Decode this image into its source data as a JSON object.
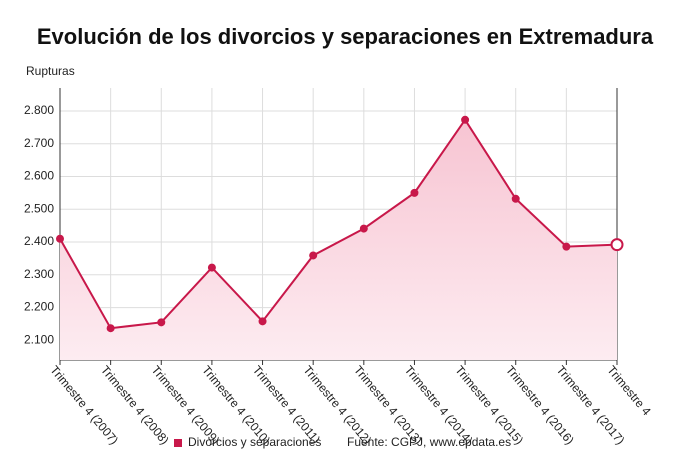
{
  "chart_data": {
    "type": "line",
    "title": "Evolución de los divorcios y separaciones en Extremadura",
    "y_label": "Rupturas",
    "categories": [
      "Trimestre 4 (2007)",
      "Trimestre 4 (2008)",
      "Trimestre 4 (2009)",
      "Trimestre 4 (2010)",
      "Trimestre 4 (2011)",
      "Trimestre 4 (2012)",
      "Trimestre 4 (2013)",
      "Trimestre 4 (2014)",
      "Trimestre 4 (2015)",
      "Trimestre 4 (2016)",
      "Trimestre 4 (2017)",
      "Trimestre 4"
    ],
    "series": [
      {
        "name": "Divorcios y separaciones",
        "color": "#c8184a",
        "values": [
          2410,
          2137,
          2155,
          2322,
          2158,
          2359,
          2441,
          2550,
          2773,
          2532,
          2386,
          2392
        ]
      }
    ],
    "ylim": [
      2040,
      2870
    ],
    "yticks": [
      {
        "value": 2100,
        "label": "2.100"
      },
      {
        "value": 2200,
        "label": "2.200"
      },
      {
        "value": 2300,
        "label": "2.300"
      },
      {
        "value": 2400,
        "label": "2.400"
      },
      {
        "value": 2500,
        "label": "2.500"
      },
      {
        "value": 2600,
        "label": "2.600"
      },
      {
        "value": 2700,
        "label": "2.700"
      },
      {
        "value": 2800,
        "label": "2.800"
      }
    ],
    "grid": true,
    "source": "Fuente: CGPJ, www.epdata.es"
  }
}
